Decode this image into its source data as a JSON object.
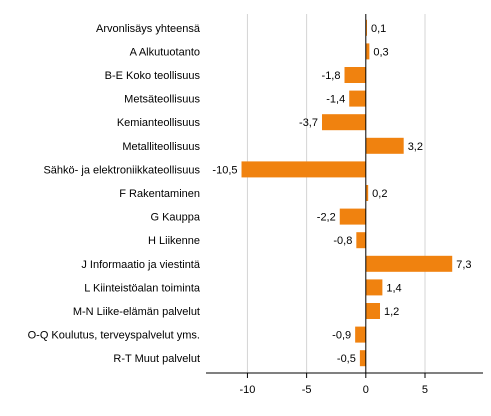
{
  "chart_data": {
    "type": "bar",
    "orientation": "horizontal",
    "categories": [
      "Arvonlisäys yhteensä",
      "A Alkutuotanto",
      "B-E Koko teollisuus",
      "Metsäteollisuus",
      "Kemianteollisuus",
      "Metalliteollisuus",
      "Sähkö- ja elektroniikkateollisuus",
      "F Rakentaminen",
      "G Kauppa",
      "H Liikenne",
      "J Informaatio ja viestintä",
      "L Kiinteistöalan toiminta",
      "M-N Liike-elämän palvelut",
      "O-Q Koulutus, terveyspalvelut yms.",
      "R-T Muut palvelut"
    ],
    "values": [
      0.1,
      0.3,
      -1.8,
      -1.4,
      -3.7,
      3.2,
      -10.5,
      0.2,
      -2.2,
      -0.8,
      7.3,
      1.4,
      1.2,
      -0.9,
      -0.5
    ],
    "value_labels": [
      "0,1",
      "0,3",
      "-1,8",
      "-1,4",
      "-3,7",
      "3,2",
      "-10,5",
      "0,2",
      "-2,2",
      "-0,8",
      "7,3",
      "1,4",
      "1,2",
      "-0,9",
      "-0,5"
    ],
    "xticks": [
      -10,
      -5,
      0,
      5
    ],
    "xtick_labels": [
      "-10",
      "-5",
      "0",
      "5"
    ],
    "xlim": [
      -13.5,
      9.9
    ],
    "title": "",
    "xlabel": "",
    "ylabel": "",
    "grid": "vertical",
    "legend": "none",
    "bar_color": "#f0820f",
    "grid_color": "#d4d4d4",
    "axis_color": "#000000"
  }
}
